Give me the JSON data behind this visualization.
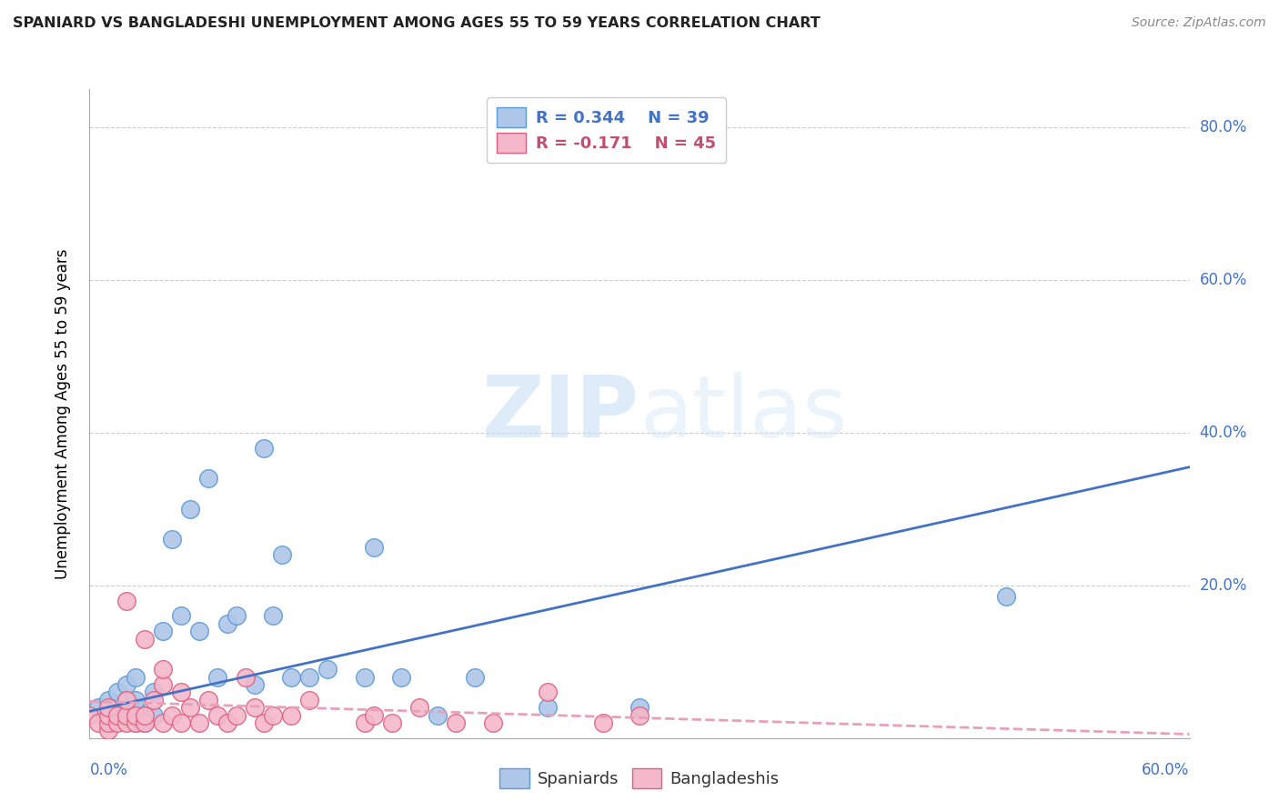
{
  "title": "SPANIARD VS BANGLADESHI UNEMPLOYMENT AMONG AGES 55 TO 59 YEARS CORRELATION CHART",
  "source": "Source: ZipAtlas.com",
  "ylabel": "Unemployment Among Ages 55 to 59 years",
  "xlim": [
    0.0,
    0.6
  ],
  "ylim": [
    0.0,
    0.85
  ],
  "spaniards_color": "#aec6e8",
  "spaniards_edge": "#5b9bd5",
  "bangladeshis_color": "#f4b8cb",
  "bangladeshis_edge": "#e06080",
  "trendline_spaniards": "#4472c4",
  "trendline_bangladeshis": "#e8a0b8",
  "legend_r1": "R = 0.344",
  "legend_n1": "N = 39",
  "legend_r2": "R = -0.171",
  "legend_n2": "N = 45",
  "watermark_zip": "ZIP",
  "watermark_atlas": "atlas",
  "spaniards_x": [
    0.005,
    0.01,
    0.015,
    0.015,
    0.02,
    0.02,
    0.02,
    0.025,
    0.025,
    0.025,
    0.025,
    0.03,
    0.03,
    0.035,
    0.035,
    0.04,
    0.045,
    0.05,
    0.055,
    0.06,
    0.065,
    0.07,
    0.075,
    0.08,
    0.09,
    0.095,
    0.1,
    0.105,
    0.11,
    0.12,
    0.13,
    0.15,
    0.155,
    0.17,
    0.19,
    0.21,
    0.25,
    0.3,
    0.5
  ],
  "spaniards_y": [
    0.04,
    0.05,
    0.04,
    0.06,
    0.03,
    0.05,
    0.07,
    0.02,
    0.04,
    0.05,
    0.08,
    0.02,
    0.03,
    0.03,
    0.06,
    0.14,
    0.26,
    0.16,
    0.3,
    0.14,
    0.34,
    0.08,
    0.15,
    0.16,
    0.07,
    0.38,
    0.16,
    0.24,
    0.08,
    0.08,
    0.09,
    0.08,
    0.25,
    0.08,
    0.03,
    0.08,
    0.04,
    0.04,
    0.185
  ],
  "bangladeshis_x": [
    0.0,
    0.005,
    0.01,
    0.01,
    0.01,
    0.01,
    0.015,
    0.015,
    0.02,
    0.02,
    0.02,
    0.02,
    0.025,
    0.025,
    0.03,
    0.03,
    0.03,
    0.035,
    0.04,
    0.04,
    0.04,
    0.045,
    0.05,
    0.05,
    0.055,
    0.06,
    0.065,
    0.07,
    0.075,
    0.08,
    0.085,
    0.09,
    0.095,
    0.1,
    0.11,
    0.12,
    0.15,
    0.155,
    0.165,
    0.18,
    0.2,
    0.22,
    0.25,
    0.28,
    0.3
  ],
  "bangladeshis_y": [
    0.03,
    0.02,
    0.01,
    0.02,
    0.03,
    0.04,
    0.02,
    0.03,
    0.02,
    0.03,
    0.05,
    0.18,
    0.02,
    0.03,
    0.02,
    0.03,
    0.13,
    0.05,
    0.02,
    0.07,
    0.09,
    0.03,
    0.02,
    0.06,
    0.04,
    0.02,
    0.05,
    0.03,
    0.02,
    0.03,
    0.08,
    0.04,
    0.02,
    0.03,
    0.03,
    0.05,
    0.02,
    0.03,
    0.02,
    0.04,
    0.02,
    0.02,
    0.06,
    0.02,
    0.03
  ],
  "span_trend_y_start": 0.035,
  "span_trend_y_end": 0.355,
  "bang_trend_y_start": 0.048,
  "bang_trend_y_end": 0.005
}
